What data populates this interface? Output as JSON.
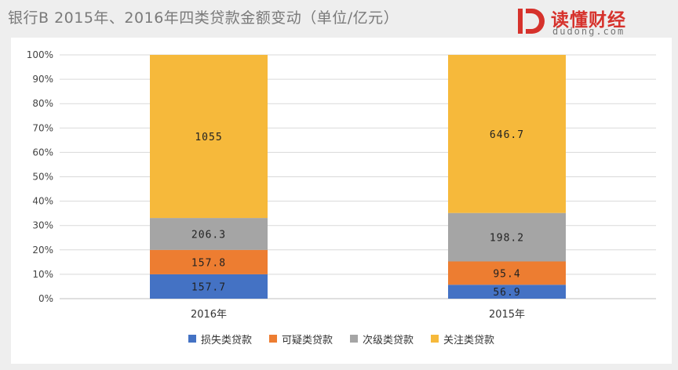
{
  "title": "银行B  2015年、2016年四类贷款金额变动（单位/亿元）",
  "brand": {
    "name": "读懂财经",
    "url": "dudong.com",
    "color": "#d6322c"
  },
  "chart_data": {
    "type": "bar",
    "stacked": "percent",
    "categories": [
      "2016年",
      "2015年"
    ],
    "series": [
      {
        "name": "损失类贷款",
        "color": "#4472c4",
        "values": [
          157.7,
          56.9
        ]
      },
      {
        "name": "可疑类贷款",
        "color": "#ed7d31",
        "values": [
          157.8,
          95.4
        ]
      },
      {
        "name": "次级类贷款",
        "color": "#a5a5a5",
        "values": [
          206.3,
          198.2
        ]
      },
      {
        "name": "关注类贷款",
        "color": "#f6b93b",
        "values": [
          1055,
          646.7
        ]
      }
    ],
    "yticks": [
      "0%",
      "10%",
      "20%",
      "30%",
      "40%",
      "50%",
      "60%",
      "70%",
      "80%",
      "90%",
      "100%"
    ],
    "ylim": [
      0,
      100
    ],
    "grid": true,
    "legend_position": "bottom"
  }
}
